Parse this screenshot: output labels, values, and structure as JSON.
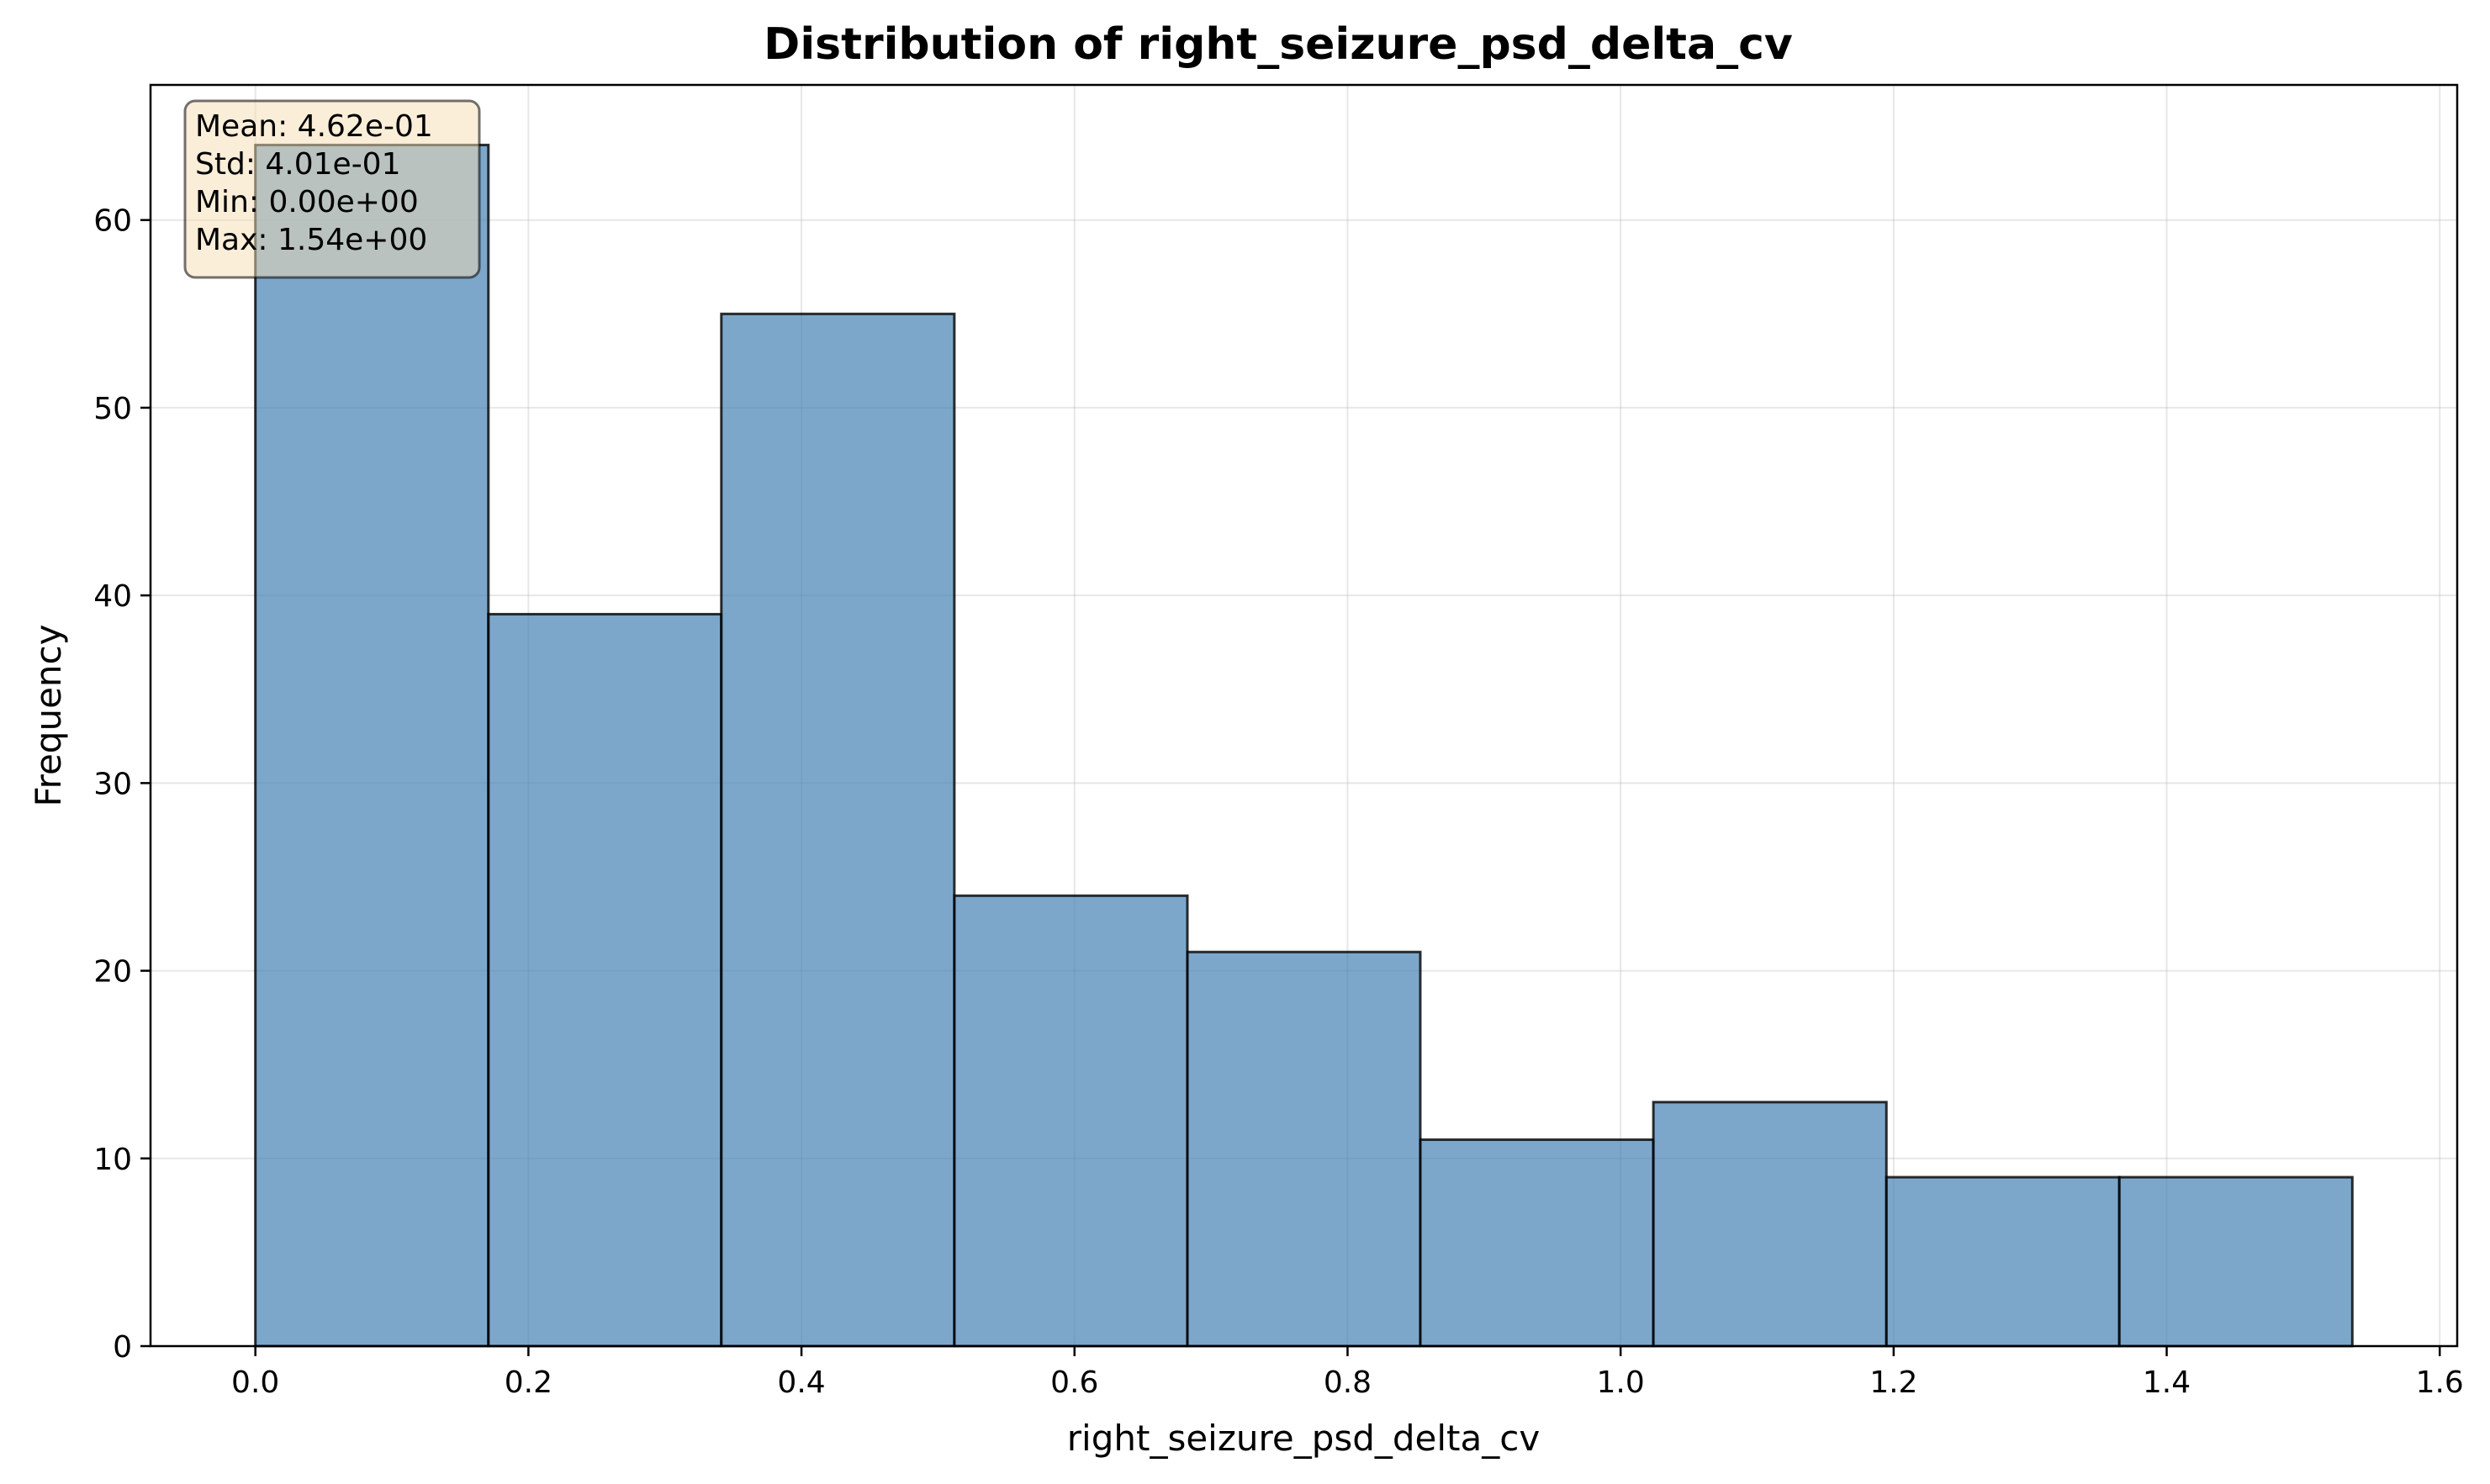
{
  "chart_data": {
    "type": "bar",
    "title": "Distribution of right_seizure_psd_delta_cv",
    "xlabel": "right_seizure_psd_delta_cv",
    "ylabel": "Frequency",
    "xlim": [
      -0.0768,
      1.6128
    ],
    "ylim": [
      0,
      67.2
    ],
    "xticks": [
      0.0,
      0.2,
      0.4,
      0.6,
      0.8,
      1.0,
      1.2,
      1.4,
      1.6
    ],
    "xtick_labels": [
      "0.0",
      "0.2",
      "0.4",
      "0.6",
      "0.8",
      "1.0",
      "1.2",
      "1.4",
      "1.6"
    ],
    "yticks": [
      0,
      10,
      20,
      30,
      40,
      50,
      60
    ],
    "ytick_labels": [
      "0",
      "10",
      "20",
      "30",
      "40",
      "50",
      "60"
    ],
    "grid": true,
    "bins": [
      {
        "x0": 0.0,
        "x1": 0.1707,
        "count": 64
      },
      {
        "x0": 0.1707,
        "x1": 0.3413,
        "count": 39
      },
      {
        "x0": 0.3413,
        "x1": 0.512,
        "count": 55
      },
      {
        "x0": 0.512,
        "x1": 0.6827,
        "count": 24
      },
      {
        "x0": 0.6827,
        "x1": 0.8533,
        "count": 21
      },
      {
        "x0": 0.8533,
        "x1": 1.024,
        "count": 11
      },
      {
        "x0": 1.024,
        "x1": 1.1947,
        "count": 13
      },
      {
        "x0": 1.1947,
        "x1": 1.3653,
        "count": 9
      },
      {
        "x0": 1.3653,
        "x1": 1.536,
        "count": 9
      }
    ],
    "bar_color": "#4682b4",
    "bar_edge_color": "#000000",
    "stats_box": {
      "lines": [
        "Mean: 4.62e-01",
        "Std: 4.01e-01",
        "Min: 0.00e+00",
        "Max: 1.54e+00"
      ],
      "background": "#f5deb3",
      "placement": "top-left"
    }
  }
}
